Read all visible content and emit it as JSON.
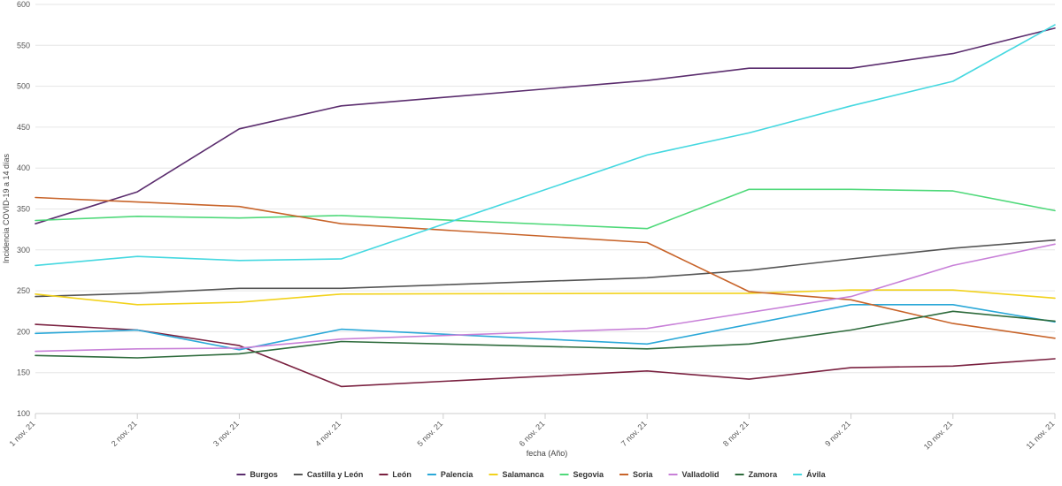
{
  "chart_data": {
    "type": "line",
    "title": "",
    "xlabel": "fecha (Año)",
    "ylabel": "Incidencia COVID-19 a 14 días",
    "ylim": [
      100,
      600
    ],
    "yticks": [
      100,
      150,
      200,
      250,
      300,
      350,
      400,
      450,
      500,
      550,
      600
    ],
    "grid": true,
    "legend_position": "bottom",
    "categories": [
      "1 nov. 21",
      "2 nov. 21",
      "3 nov. 21",
      "4 nov. 21",
      "5 nov. 21",
      "6 nov. 21",
      "7 nov. 21",
      "8 nov. 21",
      "9 nov. 21",
      "10 nov. 21",
      "11 nov. 21"
    ],
    "series": [
      {
        "name": "Burgos",
        "color": "#5b2d6e",
        "values": [
          332,
          371,
          448,
          476,
          null,
          null,
          507,
          522,
          522,
          540,
          571
        ]
      },
      {
        "name": "Castilla y León",
        "color": "#555555",
        "values": [
          243,
          247,
          253,
          253,
          null,
          null,
          266,
          275,
          289,
          302,
          312
        ]
      },
      {
        "name": "León",
        "color": "#7a2140",
        "values": [
          209,
          202,
          183,
          133,
          null,
          null,
          152,
          142,
          156,
          158,
          167
        ]
      },
      {
        "name": "Palencia",
        "color": "#2aa8d8",
        "values": [
          198,
          202,
          178,
          203,
          null,
          null,
          185,
          null,
          233,
          233,
          212
        ]
      },
      {
        "name": "Salamanca",
        "color": "#f2d21c",
        "values": [
          246,
          233,
          236,
          246,
          null,
          null,
          247,
          247,
          251,
          251,
          241
        ]
      },
      {
        "name": "Segovia",
        "color": "#4fd97a",
        "values": [
          336,
          341,
          339,
          342,
          null,
          null,
          326,
          374,
          374,
          372,
          348
        ]
      },
      {
        "name": "Soria",
        "color": "#c8642a",
        "values": [
          364,
          null,
          353,
          332,
          null,
          null,
          309,
          249,
          239,
          210,
          192
        ]
      },
      {
        "name": "Valladolid",
        "color": "#c880d8",
        "values": [
          176,
          179,
          180,
          191,
          null,
          null,
          204,
          null,
          243,
          281,
          307
        ]
      },
      {
        "name": "Zamora",
        "color": "#2e6b3c",
        "values": [
          171,
          168,
          173,
          188,
          null,
          null,
          179,
          185,
          202,
          225,
          213
        ]
      },
      {
        "name": "Ávila",
        "color": "#45d8e0",
        "values": [
          281,
          292,
          287,
          289,
          null,
          null,
          416,
          443,
          476,
          506,
          575
        ]
      }
    ]
  }
}
